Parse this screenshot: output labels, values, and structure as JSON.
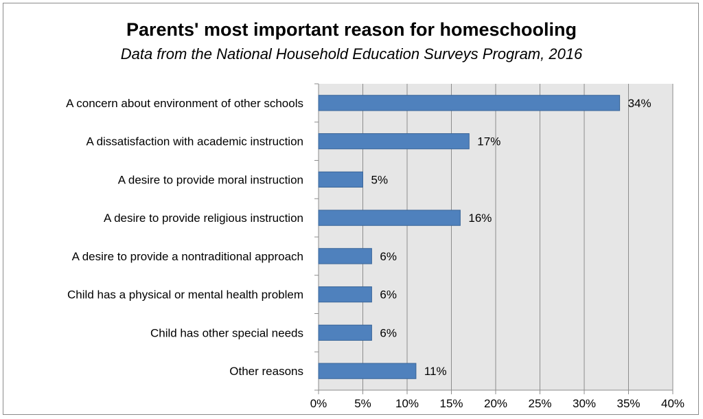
{
  "colors": {
    "bar": "#4f81bd",
    "bar_border": "#3a6598",
    "plot_background": "#e6e6e6",
    "gridline": "#8c8c8c"
  },
  "chart_data": {
    "type": "bar",
    "orientation": "horizontal",
    "title": "Parents' most important reason for homeschooling",
    "subtitle": "Data from the National Household Education Surveys Program, 2016",
    "xlabel": "",
    "ylabel": "",
    "categories": [
      "A concern about environment of other schools",
      "A dissatisfaction with academic instruction",
      "A desire to provide moral instruction",
      "A desire to provide religious instruction",
      "A desire to provide a nontraditional approach",
      "Child has a physical or mental health problem",
      "Child has other special needs",
      "Other reasons"
    ],
    "values": [
      34,
      17,
      5,
      16,
      6,
      6,
      6,
      11
    ],
    "value_labels": [
      "34%",
      "17%",
      "5%",
      "16%",
      "6%",
      "6%",
      "6%",
      "11%"
    ],
    "xlim": [
      0,
      40
    ],
    "xticks": [
      0,
      5,
      10,
      15,
      20,
      25,
      30,
      35,
      40
    ],
    "xtick_labels": [
      "0%",
      "5%",
      "10%",
      "15%",
      "20%",
      "25%",
      "30%",
      "35%",
      "40%"
    ],
    "grid": true,
    "legend": "none"
  }
}
